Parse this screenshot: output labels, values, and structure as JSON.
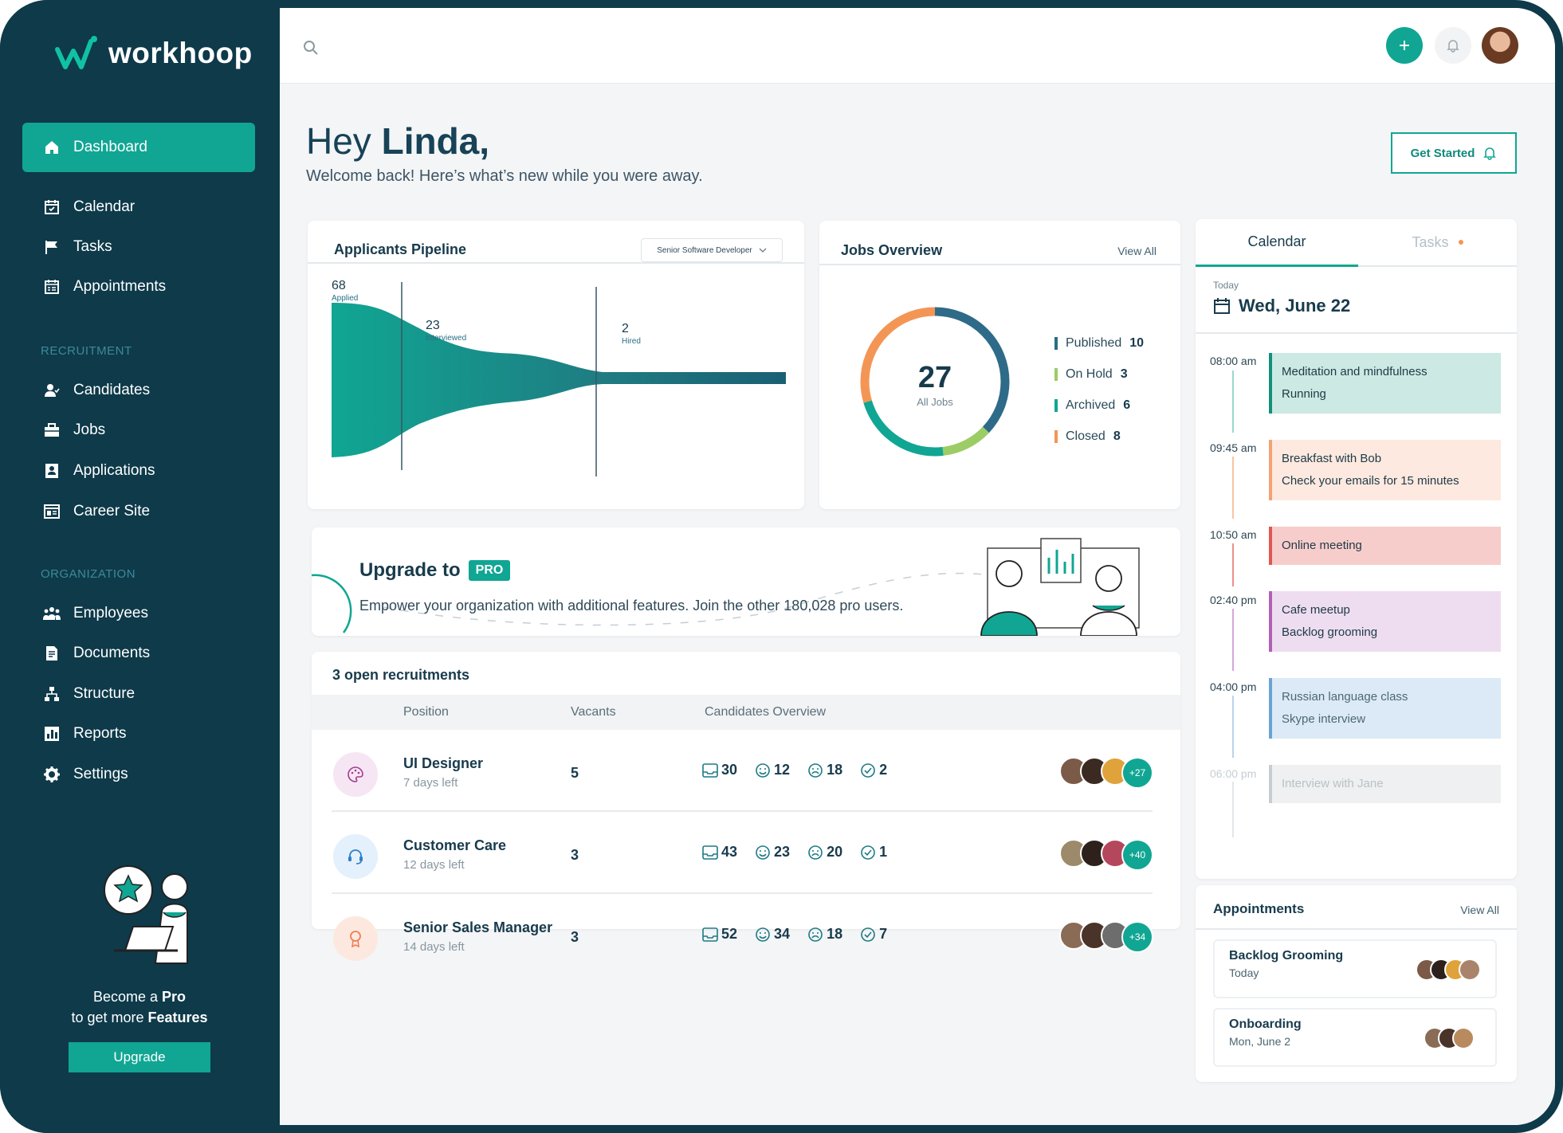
{
  "brand": {
    "name": "workhoop"
  },
  "nav": {
    "main": [
      {
        "label": "Dashboard",
        "icon": "home-icon",
        "active": true
      },
      {
        "label": "Calendar",
        "icon": "calendar-icon"
      },
      {
        "label": "Tasks",
        "icon": "flag-icon"
      },
      {
        "label": "Appointments",
        "icon": "appointments-icon"
      }
    ],
    "recruitment_label": "RECRUITMENT",
    "recruitment": [
      {
        "label": "Candidates",
        "icon": "candidates-icon"
      },
      {
        "label": "Jobs",
        "icon": "briefcase-icon"
      },
      {
        "label": "Applications",
        "icon": "applications-icon"
      },
      {
        "label": "Career Site",
        "icon": "career-site-icon"
      }
    ],
    "organization_label": "ORGANIZATION",
    "organization": [
      {
        "label": "Employees",
        "icon": "employees-icon"
      },
      {
        "label": "Documents",
        "icon": "documents-icon"
      },
      {
        "label": "Structure",
        "icon": "structure-icon"
      },
      {
        "label": "Reports",
        "icon": "reports-icon"
      },
      {
        "label": "Settings",
        "icon": "gear-icon"
      }
    ]
  },
  "promo": {
    "line1": "Become a ",
    "line1_bold": "Pro",
    "line2": "to get more ",
    "line2_bold": "Features",
    "button": "Upgrade"
  },
  "header": {
    "greeting_prefix": "Hey ",
    "name": "Linda,",
    "subtitle": "Welcome back! Here’s what’s new while you were away.",
    "get_started": "Get Started"
  },
  "pipeline": {
    "title": "Applicants Pipeline",
    "filter": "Senior Software Developer",
    "stages": [
      {
        "count": "68",
        "label": "Applied"
      },
      {
        "count": "23",
        "label": "Interviewed"
      },
      {
        "count": "2",
        "label": "Hired"
      }
    ]
  },
  "jobs_overview": {
    "title": "Jobs Overview",
    "view_all": "View All",
    "total": "27",
    "total_label": "All Jobs",
    "items": [
      {
        "label": "Published",
        "value": "10",
        "color": "#2e6b88"
      },
      {
        "label": "On Hold",
        "value": "3",
        "color": "#9ccc65"
      },
      {
        "label": "Archived",
        "value": "6",
        "color": "#10a693"
      },
      {
        "label": "Closed",
        "value": "8",
        "color": "#f39655"
      }
    ]
  },
  "upgrade_banner": {
    "title": "Upgrade to",
    "badge": "PRO",
    "text": "Empower your organization with additional features. Join the other 180,028 pro users."
  },
  "recruitments": {
    "title": "3 open recruitments",
    "headers": {
      "position": "Position",
      "vacants": "Vacants",
      "overview": "Candidates Overview"
    },
    "rows": [
      {
        "title": "UI Designer",
        "sub": "7 days left",
        "vacants": "5",
        "inbox": "30",
        "happy": "12",
        "sad": "18",
        "done": "2",
        "more": "+27",
        "icon": "palette-icon",
        "bg": "#f6e6f3",
        "fg": "#a23c91"
      },
      {
        "title": "Customer Care",
        "sub": "12 days left",
        "vacants": "3",
        "inbox": "43",
        "happy": "23",
        "sad": "20",
        "done": "1",
        "more": "+40",
        "icon": "headset-icon",
        "bg": "#e4f0fb",
        "fg": "#2f7fca"
      },
      {
        "title": "Senior Sales Manager",
        "sub": "14 days left",
        "vacants": "3",
        "inbox": "52",
        "happy": "34",
        "sad": "18",
        "done": "7",
        "more": "+34",
        "icon": "award-icon",
        "bg": "#fde8e0",
        "fg": "#ee7f52"
      }
    ]
  },
  "calendar": {
    "tab_calendar": "Calendar",
    "tab_tasks": "Tasks",
    "today_label": "Today",
    "date": "Wed, June 22",
    "events": [
      {
        "time": "08:00 am",
        "lines": [
          "Meditation and mindfulness",
          "Running"
        ],
        "bg": "#cce9e3",
        "border": "#138f7d"
      },
      {
        "time": "09:45 am",
        "lines": [
          "Breakfast with Bob",
          "Check your emails for 15 minutes"
        ],
        "bg": "#fde9df",
        "border": "#f4a173"
      },
      {
        "time": "10:50 am",
        "lines": [
          "Online meeting"
        ],
        "bg": "#f7cdcb",
        "border": "#e1564f"
      },
      {
        "time": "02:40 pm",
        "lines": [
          "Cafe meetup",
          "Backlog grooming"
        ],
        "bg": "#eeddf0",
        "border": "#b15fb9"
      },
      {
        "time": "04:00 pm",
        "lines": [
          "Russian language class",
          "Skype interview"
        ],
        "bg": "#dbeaf6",
        "border": "#6aa3d2"
      },
      {
        "time": "06:00 pm",
        "lines": [
          "Interview with Jane"
        ],
        "bg": "#eef0f1",
        "border": "#c7cdd1"
      }
    ]
  },
  "appointments": {
    "title": "Appointments",
    "view_all": "View All",
    "items": [
      {
        "title": "Backlog Grooming",
        "sub": "Today"
      },
      {
        "title": "Onboarding",
        "sub": "Mon, June 2"
      }
    ]
  }
}
